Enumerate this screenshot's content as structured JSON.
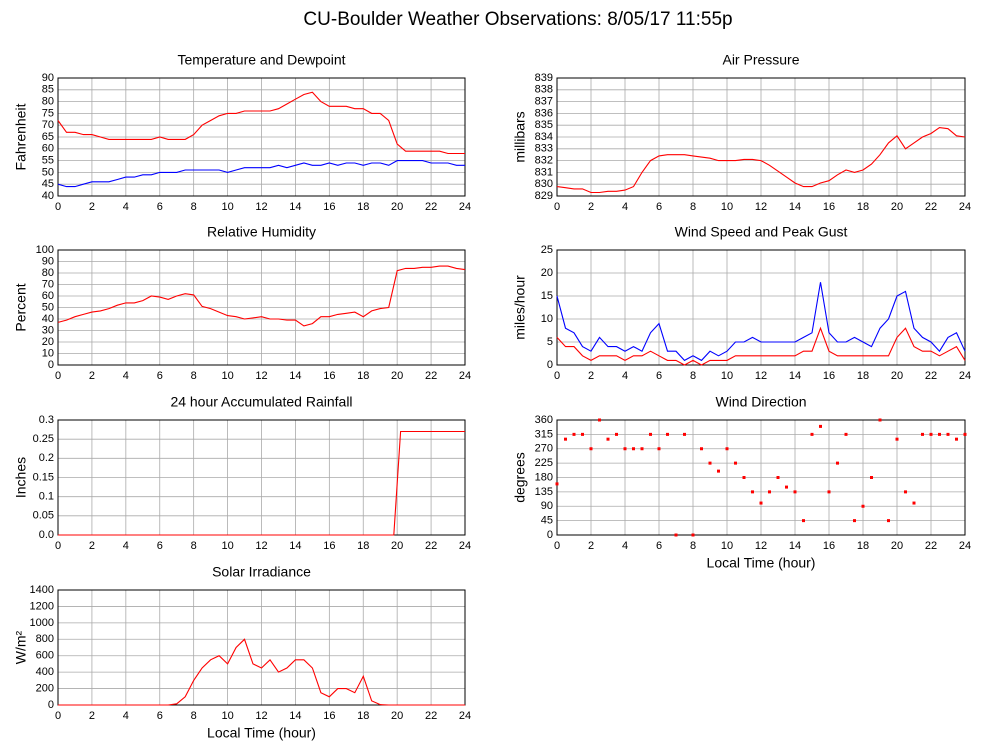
{
  "title": "CU-Boulder Weather Observations: 8/05/17 11:55p",
  "chart_data": [
    {
      "type": "line",
      "title": "Temperature and Dewpoint",
      "ylabel": "Fahrenheit",
      "x": [
        0,
        0.5,
        1,
        1.5,
        2,
        2.5,
        3,
        3.5,
        4,
        4.5,
        5,
        5.5,
        6,
        6.5,
        7,
        7.5,
        8,
        8.5,
        9,
        9.5,
        10,
        10.5,
        11,
        11.5,
        12,
        12.5,
        13,
        13.5,
        14,
        14.5,
        15,
        15.5,
        16,
        16.5,
        17,
        17.5,
        18,
        18.5,
        19,
        19.5,
        20,
        20.5,
        21,
        21.5,
        22,
        22.5,
        23,
        23.5,
        24
      ],
      "series": [
        {
          "color": "#ff0000",
          "values": [
            72,
            67,
            67,
            66,
            66,
            65,
            64,
            64,
            64,
            64,
            64,
            64,
            65,
            64,
            64,
            64,
            66,
            70,
            72,
            74,
            75,
            75,
            76,
            76,
            76,
            76,
            77,
            79,
            81,
            83,
            84,
            80,
            78,
            78,
            78,
            77,
            77,
            75,
            75,
            72,
            62,
            59,
            59,
            59,
            59,
            59,
            58,
            58,
            58
          ]
        },
        {
          "color": "#0000ff",
          "values": [
            45,
            44,
            44,
            45,
            46,
            46,
            46,
            47,
            48,
            48,
            49,
            49,
            50,
            50,
            50,
            51,
            51,
            51,
            51,
            51,
            50,
            51,
            52,
            52,
            52,
            52,
            53,
            52,
            53,
            54,
            53,
            53,
            54,
            53,
            54,
            54,
            53,
            54,
            54,
            53,
            55,
            55,
            55,
            55,
            54,
            54,
            54,
            53,
            53
          ]
        }
      ],
      "xlim": [
        0,
        24
      ],
      "xticks": [
        0,
        2,
        4,
        6,
        8,
        10,
        12,
        14,
        16,
        18,
        20,
        22,
        24
      ],
      "ylim": [
        40,
        90
      ],
      "yticks": [
        40,
        45,
        50,
        55,
        60,
        65,
        70,
        75,
        80,
        85,
        90
      ],
      "grid": true
    },
    {
      "type": "line",
      "title": "Air Pressure",
      "ylabel": "millibars",
      "x": [
        0,
        0.5,
        1,
        1.5,
        2,
        2.5,
        3,
        3.5,
        4,
        4.5,
        5,
        5.5,
        6,
        6.5,
        7,
        7.5,
        8,
        8.5,
        9,
        9.5,
        10,
        10.5,
        11,
        11.5,
        12,
        12.5,
        13,
        13.5,
        14,
        14.5,
        15,
        15.5,
        16,
        16.5,
        17,
        17.5,
        18,
        18.5,
        19,
        19.5,
        20,
        20.5,
        21,
        21.5,
        22,
        22.5,
        23,
        23.5,
        24
      ],
      "series": [
        {
          "color": "#ff0000",
          "values": [
            829.8,
            829.7,
            829.6,
            829.6,
            829.3,
            829.3,
            829.4,
            829.4,
            829.5,
            829.8,
            831,
            832,
            832.4,
            832.5,
            832.5,
            832.5,
            832.4,
            832.3,
            832.2,
            832,
            832,
            832,
            832.1,
            832.1,
            832,
            831.6,
            831.1,
            830.6,
            830.1,
            829.8,
            829.8,
            830.1,
            830.3,
            830.8,
            831.2,
            831,
            831.2,
            831.7,
            832.5,
            833.5,
            834.1,
            833,
            833.5,
            834,
            834.3,
            834.8,
            834.7,
            834.1,
            834
          ]
        }
      ],
      "xlim": [
        0,
        24
      ],
      "xticks": [
        0,
        2,
        4,
        6,
        8,
        10,
        12,
        14,
        16,
        18,
        20,
        22,
        24
      ],
      "ylim": [
        829,
        839
      ],
      "yticks": [
        829,
        830,
        831,
        832,
        833,
        834,
        835,
        836,
        837,
        838,
        839
      ],
      "grid": true
    },
    {
      "type": "line",
      "title": "Relative Humidity",
      "ylabel": "Percent",
      "x": [
        0,
        0.5,
        1,
        1.5,
        2,
        2.5,
        3,
        3.5,
        4,
        4.5,
        5,
        5.5,
        6,
        6.5,
        7,
        7.5,
        8,
        8.5,
        9,
        9.5,
        10,
        10.5,
        11,
        11.5,
        12,
        12.5,
        13,
        13.5,
        14,
        14.5,
        15,
        15.5,
        16,
        16.5,
        17,
        17.5,
        18,
        18.5,
        19,
        19.5,
        20,
        20.5,
        21,
        21.5,
        22,
        22.5,
        23,
        23.5,
        24
      ],
      "series": [
        {
          "color": "#ff0000",
          "values": [
            37,
            39,
            42,
            44,
            46,
            47,
            49,
            52,
            54,
            54,
            56,
            60,
            59,
            57,
            60,
            62,
            61,
            51,
            49,
            46,
            43,
            42,
            40,
            41,
            42,
            40,
            40,
            39,
            39,
            34,
            36,
            42,
            42,
            44,
            45,
            46,
            42,
            47,
            49,
            50,
            82,
            84,
            84,
            85,
            85,
            86,
            86,
            84,
            83
          ]
        }
      ],
      "xlim": [
        0,
        24
      ],
      "xticks": [
        0,
        2,
        4,
        6,
        8,
        10,
        12,
        14,
        16,
        18,
        20,
        22,
        24
      ],
      "ylim": [
        0,
        100
      ],
      "yticks": [
        0,
        10,
        20,
        30,
        40,
        50,
        60,
        70,
        80,
        90,
        100
      ],
      "grid": true
    },
    {
      "type": "line",
      "title": "Wind Speed and Peak Gust",
      "ylabel": "miles/hour",
      "x": [
        0,
        0.5,
        1,
        1.5,
        2,
        2.5,
        3,
        3.5,
        4,
        4.5,
        5,
        5.5,
        6,
        6.5,
        7,
        7.5,
        8,
        8.5,
        9,
        9.5,
        10,
        10.5,
        11,
        11.5,
        12,
        12.5,
        13,
        13.5,
        14,
        14.5,
        15,
        15.5,
        16,
        16.5,
        17,
        17.5,
        18,
        18.5,
        19,
        19.5,
        20,
        20.5,
        21,
        21.5,
        22,
        22.5,
        23,
        23.5,
        24
      ],
      "series": [
        {
          "color": "#0000ff",
          "values": [
            15,
            8,
            7,
            4,
            3,
            6,
            4,
            4,
            3,
            4,
            3,
            7,
            9,
            3,
            3,
            1,
            2,
            1,
            3,
            2,
            3,
            5,
            5,
            6,
            5,
            5,
            5,
            5,
            5,
            6,
            7,
            18,
            7,
            5,
            5,
            6,
            5,
            4,
            8,
            10,
            15,
            16,
            8,
            6,
            5,
            3,
            6,
            7,
            3
          ]
        },
        {
          "color": "#ff0000",
          "values": [
            6,
            4,
            4,
            2,
            1,
            2,
            2,
            2,
            1,
            2,
            2,
            3,
            2,
            1,
            1,
            0,
            1,
            0,
            1,
            1,
            1,
            2,
            2,
            2,
            2,
            2,
            2,
            2,
            2,
            3,
            3,
            8,
            3,
            2,
            2,
            2,
            2,
            2,
            2,
            2,
            6,
            8,
            4,
            3,
            3,
            2,
            3,
            4,
            1
          ]
        }
      ],
      "xlim": [
        0,
        24
      ],
      "xticks": [
        0,
        2,
        4,
        6,
        8,
        10,
        12,
        14,
        16,
        18,
        20,
        22,
        24
      ],
      "ylim": [
        0,
        25
      ],
      "yticks": [
        0,
        5,
        10,
        15,
        20,
        25
      ],
      "grid": true
    },
    {
      "type": "line",
      "title": "24 hour Accumulated Rainfall",
      "ylabel": "Inches",
      "x": [
        0,
        19.8,
        20.2,
        24
      ],
      "series": [
        {
          "color": "#ff0000",
          "values": [
            0,
            0,
            0.27,
            0.27
          ]
        }
      ],
      "xlim": [
        0,
        24
      ],
      "xticks": [
        0,
        2,
        4,
        6,
        8,
        10,
        12,
        14,
        16,
        18,
        20,
        22,
        24
      ],
      "ylim": [
        0,
        0.3
      ],
      "yticks": [
        {
          "value": 0,
          "label": "0.0"
        },
        0.05,
        0.1,
        0.15,
        0.2,
        0.25,
        0.3
      ],
      "grid": true
    },
    {
      "type": "scatter",
      "title": "Wind Direction",
      "ylabel": "degrees",
      "xlabel": "Local Time (hour)",
      "x": [
        0,
        0.5,
        1,
        1.5,
        2,
        2.5,
        3,
        3.5,
        4,
        4.5,
        5,
        5.5,
        6,
        6.5,
        7,
        7.5,
        8,
        8.5,
        9,
        9.5,
        10,
        10.5,
        11,
        11.5,
        12,
        12.5,
        13,
        13.5,
        14,
        14.5,
        15,
        15.5,
        16,
        16.5,
        17,
        17.5,
        18,
        18.5,
        19,
        19.5,
        20,
        20.5,
        21,
        21.5,
        22,
        22.5,
        23,
        23.5,
        24
      ],
      "series": [
        {
          "color": "#ff0000",
          "values": [
            160,
            300,
            315,
            315,
            270,
            360,
            300,
            315,
            270,
            270,
            270,
            315,
            270,
            315,
            0,
            315,
            0,
            270,
            225,
            200,
            270,
            225,
            180,
            135,
            100,
            135,
            180,
            150,
            135,
            45,
            315,
            340,
            135,
            225,
            315,
            45,
            90,
            180,
            360,
            45,
            300,
            135,
            100,
            315,
            315,
            315,
            315,
            300,
            315
          ]
        }
      ],
      "xlim": [
        0,
        24
      ],
      "xticks": [
        0,
        2,
        4,
        6,
        8,
        10,
        12,
        14,
        16,
        18,
        20,
        22,
        24
      ],
      "ylim": [
        0,
        360
      ],
      "yticks": [
        0,
        45,
        90,
        135,
        180,
        225,
        270,
        315,
        360
      ],
      "grid": true
    },
    {
      "type": "line",
      "title": "Solar Irradiance",
      "ylabel": "W/m²",
      "xlabel": "Local Time (hour)",
      "x": [
        0,
        0.5,
        1,
        1.5,
        2,
        2.5,
        3,
        3.5,
        4,
        4.5,
        5,
        5.5,
        6,
        6.5,
        7,
        7.5,
        8,
        8.5,
        9,
        9.5,
        10,
        10.5,
        11,
        11.5,
        12,
        12.5,
        13,
        13.5,
        14,
        14.5,
        15,
        15.5,
        16,
        16.5,
        17,
        17.5,
        18,
        18.5,
        19,
        19.5,
        20,
        20.5,
        21,
        21.5,
        22,
        22.5,
        23,
        23.5,
        24
      ],
      "series": [
        {
          "color": "#ff0000",
          "values": [
            0,
            0,
            0,
            0,
            0,
            0,
            0,
            0,
            0,
            0,
            0,
            0,
            0,
            0,
            15,
            100,
            300,
            450,
            550,
            600,
            500,
            700,
            800,
            500,
            450,
            550,
            400,
            450,
            550,
            550,
            450,
            150,
            100,
            200,
            200,
            150,
            350,
            50,
            5,
            0,
            0,
            0,
            0,
            0,
            0,
            0,
            0,
            0,
            0
          ]
        }
      ],
      "xlim": [
        0,
        24
      ],
      "xticks": [
        0,
        2,
        4,
        6,
        8,
        10,
        12,
        14,
        16,
        18,
        20,
        22,
        24
      ],
      "ylim": [
        0,
        1400
      ],
      "yticks": [
        0,
        200,
        400,
        600,
        800,
        1000,
        1200,
        1400
      ],
      "grid": true
    }
  ]
}
